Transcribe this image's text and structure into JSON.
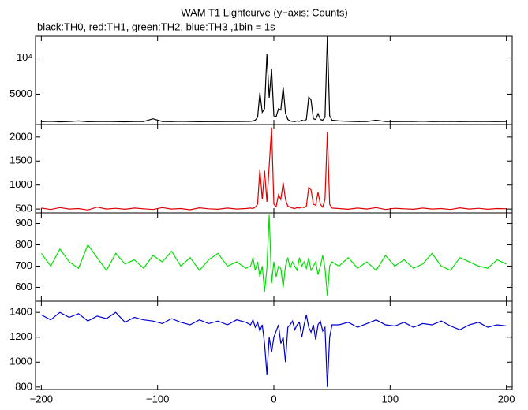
{
  "chart_data": [
    {
      "type": "line",
      "title": "WAM T1 Lightcurve (y−axis: Counts)",
      "subtitle": "black:TH0, red:TH1, green:TH2, blue:TH3 ,1bin = 1s",
      "x": [
        -200,
        -192,
        -184,
        -176,
        -168,
        -160,
        -152,
        -144,
        -136,
        -128,
        -120,
        -112,
        -104,
        -96,
        -88,
        -80,
        -72,
        -64,
        -56,
        -48,
        -40,
        -32,
        -24,
        -20,
        -18,
        -16,
        -14,
        -12,
        -10,
        -8,
        -6,
        -4,
        -2,
        0,
        2,
        4,
        6,
        8,
        10,
        12,
        14,
        16,
        18,
        20,
        22,
        24,
        26,
        28,
        30,
        32,
        34,
        36,
        38,
        40,
        42,
        44,
        46,
        48,
        50,
        56,
        64,
        72,
        80,
        88,
        96,
        104,
        112,
        120,
        128,
        136,
        144,
        152,
        160,
        168,
        176,
        184,
        192,
        200
      ],
      "series": [
        {
          "color": "#000000",
          "values": [
            1200,
            1250,
            1180,
            1220,
            1300,
            1190,
            1210,
            1240,
            1200,
            1180,
            1230,
            1210,
            1600,
            1220,
            1200,
            1250,
            1210,
            1190,
            1230,
            1200,
            1220,
            1210,
            1240,
            1250,
            1300,
            1400,
            1800,
            5200,
            2500,
            3000,
            10500,
            4500,
            8500,
            2000,
            1900,
            3000,
            2800,
            6000,
            2400,
            1500,
            1300,
            1250,
            1200,
            1300,
            1250,
            1400,
            1300,
            1500,
            4600,
            4200,
            1600,
            1500,
            2300,
            1500,
            1400,
            1800,
            13000,
            2000,
            1400,
            1300,
            1250,
            1200,
            1230,
            1400,
            1210,
            1200,
            1230,
            1220,
            1260,
            1200,
            1210,
            1240,
            1200,
            1220,
            1210,
            1230,
            1200,
            1220
          ]
        }
      ],
      "ylim": [
        800,
        13000
      ],
      "yticks": [
        5000,
        {
          "value": 10000,
          "label": "10⁴"
        }
      ]
    },
    {
      "type": "line",
      "x": [
        -200,
        -192,
        -184,
        -176,
        -168,
        -160,
        -152,
        -144,
        -136,
        -128,
        -120,
        -112,
        -104,
        -96,
        -88,
        -80,
        -72,
        -64,
        -56,
        -48,
        -40,
        -32,
        -24,
        -20,
        -18,
        -16,
        -14,
        -12,
        -10,
        -8,
        -6,
        -4,
        -2,
        0,
        2,
        4,
        6,
        8,
        10,
        12,
        14,
        16,
        18,
        20,
        22,
        24,
        26,
        28,
        30,
        32,
        34,
        36,
        38,
        40,
        42,
        44,
        46,
        48,
        50,
        56,
        64,
        72,
        80,
        88,
        96,
        104,
        112,
        120,
        128,
        136,
        144,
        152,
        160,
        168,
        176,
        184,
        192,
        200
      ],
      "series": [
        {
          "color": "#e00000",
          "values": [
            520,
            490,
            530,
            500,
            510,
            480,
            540,
            500,
            515,
            495,
            520,
            505,
            490,
            530,
            500,
            510,
            485,
            525,
            505,
            495,
            520,
            500,
            510,
            520,
            510,
            540,
            600,
            1330,
            700,
            1300,
            650,
            1400,
            2200,
            600,
            550,
            800,
            700,
            1050,
            700,
            560,
            540,
            520,
            510,
            530,
            520,
            540,
            530,
            560,
            950,
            900,
            600,
            580,
            850,
            600,
            540,
            700,
            2100,
            600,
            520,
            510,
            495,
            520,
            500,
            530,
            490,
            515,
            505,
            495,
            520,
            500,
            510,
            490,
            525,
            500,
            515,
            495,
            510,
            505
          ]
        }
      ],
      "ylim": [
        420,
        2260
      ],
      "yticks": [
        500,
        1000,
        1500,
        2000
      ]
    },
    {
      "type": "line",
      "x": [
        -200,
        -192,
        -184,
        -176,
        -168,
        -160,
        -152,
        -144,
        -136,
        -128,
        -120,
        -112,
        -104,
        -96,
        -88,
        -80,
        -72,
        -64,
        -56,
        -48,
        -40,
        -32,
        -24,
        -20,
        -18,
        -16,
        -14,
        -12,
        -10,
        -8,
        -6,
        -4,
        -2,
        0,
        2,
        4,
        6,
        8,
        10,
        12,
        14,
        16,
        18,
        20,
        22,
        24,
        26,
        28,
        30,
        32,
        34,
        36,
        38,
        40,
        42,
        44,
        46,
        48,
        50,
        56,
        64,
        72,
        80,
        88,
        96,
        104,
        112,
        120,
        128,
        136,
        144,
        152,
        160,
        168,
        176,
        184,
        192,
        200
      ],
      "series": [
        {
          "color": "#00e000",
          "values": [
            760,
            700,
            780,
            720,
            690,
            800,
            740,
            680,
            760,
            710,
            730,
            690,
            750,
            720,
            770,
            700,
            740,
            680,
            730,
            760,
            700,
            720,
            690,
            700,
            740,
            680,
            720,
            650,
            700,
            580,
            690,
            940,
            620,
            720,
            650,
            700,
            690,
            600,
            700,
            740,
            690,
            720,
            700,
            680,
            740,
            700,
            720,
            690,
            740,
            680,
            700,
            720,
            660,
            700,
            750,
            690,
            560,
            700,
            720,
            700,
            740,
            690,
            720,
            680,
            750,
            700,
            730,
            690,
            710,
            760,
            700,
            680,
            740,
            720,
            700,
            690,
            730,
            710
          ]
        }
      ],
      "ylim": [
        535,
        950
      ],
      "yticks": [
        600,
        700,
        800,
        900
      ]
    },
    {
      "type": "line",
      "x": [
        -200,
        -192,
        -184,
        -176,
        -168,
        -160,
        -152,
        -144,
        -136,
        -128,
        -120,
        -112,
        -104,
        -96,
        -88,
        -80,
        -72,
        -64,
        -56,
        -48,
        -40,
        -32,
        -24,
        -20,
        -18,
        -16,
        -14,
        -12,
        -10,
        -8,
        -6,
        -4,
        -2,
        0,
        2,
        4,
        6,
        8,
        10,
        12,
        14,
        16,
        18,
        20,
        22,
        24,
        26,
        28,
        30,
        32,
        34,
        36,
        38,
        40,
        42,
        44,
        46,
        48,
        50,
        56,
        64,
        72,
        80,
        88,
        96,
        104,
        112,
        120,
        128,
        136,
        144,
        152,
        160,
        168,
        176,
        184,
        192,
        200
      ],
      "series": [
        {
          "color": "#0000d0",
          "values": [
            1380,
            1340,
            1400,
            1360,
            1390,
            1330,
            1370,
            1350,
            1400,
            1320,
            1360,
            1340,
            1330,
            1310,
            1350,
            1320,
            1300,
            1340,
            1310,
            1330,
            1300,
            1340,
            1320,
            1300,
            1340,
            1280,
            1320,
            1250,
            1300,
            1150,
            900,
            1200,
            1080,
            1200,
            1250,
            1300,
            1150,
            1200,
            1000,
            1280,
            1300,
            1330,
            1260,
            1300,
            1320,
            1200,
            1300,
            1380,
            1280,
            1240,
            1300,
            1180,
            1300,
            1330,
            1250,
            1280,
            800,
            1200,
            1300,
            1300,
            1320,
            1280,
            1310,
            1340,
            1300,
            1290,
            1320,
            1280,
            1310,
            1300,
            1330,
            1290,
            1260,
            1300,
            1320,
            1280,
            1300,
            1290
          ]
        }
      ],
      "ylim": [
        780,
        1490
      ],
      "yticks": [
        800,
        1000,
        1200,
        1400
      ],
      "xlim": [
        -205,
        205
      ],
      "xticks": [
        {
          "value": -200,
          "label": "−200"
        },
        {
          "value": -100,
          "label": "−100"
        },
        0,
        100,
        200
      ]
    }
  ]
}
